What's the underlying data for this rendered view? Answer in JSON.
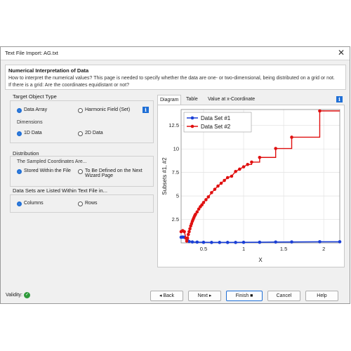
{
  "window": {
    "title": "Text File Import: AG.txt",
    "close_glyph": "✕"
  },
  "header": {
    "title": "Numerical Interpretation of Data",
    "description": "How to interpret the numerical values? This page is needed to specify whether the data are one- or two-dimensional, being distributed on a grid or not. If there is a grid: Are the coordinates equidistant or not?"
  },
  "target_object": {
    "title": "Target Object Type",
    "options": [
      "Data Array",
      "Harmonic Field (Set)"
    ],
    "selected": "Data Array",
    "info_glyph": "i",
    "dimensions_label": "Dimensions",
    "dimensions": [
      "1D Data",
      "2D Data"
    ],
    "dimensions_selected": "1D Data"
  },
  "distribution": {
    "title": "Distribution",
    "subtitle": "The Sampled Coordinates Are...",
    "options": [
      "Stored Within the File",
      "To Be Defined on the Next Wizard Page"
    ],
    "selected": "Stored Within the File"
  },
  "datasets_listed": {
    "title": "Data Sets are Listed Within Text File in...",
    "options": [
      "Columns",
      "Rows"
    ],
    "selected": "Columns"
  },
  "tabs": [
    "Diagram",
    "Table",
    "Value at x-Coordinate"
  ],
  "active_tab": "Diagram",
  "chart_data": {
    "type": "line",
    "xlabel": "X",
    "ylabel": "Subsets #1, #2",
    "xlim": [
      0.22,
      2.2
    ],
    "ylim": [
      0,
      14.2
    ],
    "xticks": [
      "0.5",
      "1",
      "1.5",
      "2"
    ],
    "xtick_values": [
      0.5,
      1,
      1.5,
      2
    ],
    "yticks": [
      "2.5",
      "5",
      "7.5",
      "10",
      "12.5"
    ],
    "ytick_values": [
      2.5,
      5,
      7.5,
      10,
      12.5
    ],
    "grid": true,
    "legend_position": "top-left",
    "series": [
      {
        "name": "Data Set #1",
        "color": "#1a3fd6",
        "x": [
          0.22,
          0.24,
          0.26,
          0.28,
          0.3,
          0.32,
          0.36,
          0.42,
          0.5,
          0.6,
          0.7,
          0.8,
          0.9,
          1.0,
          1.2,
          1.4,
          1.6,
          1.95,
          2.2
        ],
        "y": [
          0.6,
          0.62,
          0.6,
          0.5,
          0.25,
          0.15,
          0.1,
          0.08,
          0.06,
          0.05,
          0.05,
          0.05,
          0.05,
          0.06,
          0.07,
          0.09,
          0.1,
          0.12,
          0.12
        ]
      },
      {
        "name": "Data Set #2",
        "color": "#e01010",
        "x": [
          0.22,
          0.24,
          0.26,
          0.28,
          0.29,
          0.3,
          0.31,
          0.32,
          0.33,
          0.34,
          0.35,
          0.36,
          0.37,
          0.38,
          0.39,
          0.4,
          0.42,
          0.44,
          0.46,
          0.48,
          0.5,
          0.53,
          0.56,
          0.6,
          0.64,
          0.68,
          0.72,
          0.76,
          0.8,
          0.85,
          0.9,
          0.95,
          1.0,
          1.05,
          1.1,
          1.2,
          1.4,
          1.6,
          1.95
        ],
        "y": [
          1.2,
          1.3,
          1.2,
          0.5,
          0.2,
          0.5,
          0.9,
          1.2,
          1.5,
          1.8,
          2.05,
          2.3,
          2.5,
          2.7,
          2.9,
          3.05,
          3.3,
          3.6,
          3.85,
          4.05,
          4.3,
          4.6,
          4.9,
          5.35,
          5.7,
          6.05,
          6.35,
          6.65,
          6.95,
          7.1,
          7.6,
          7.85,
          8.1,
          8.35,
          8.6,
          9.1,
          10.05,
          11.25,
          14.05
        ],
        "step_from_index": 34
      }
    ]
  },
  "footer": {
    "validity_label": "Validity:",
    "check_glyph": "✓",
    "buttons": [
      "◂ Back",
      "Next ▸",
      "Finish ■",
      "Cancel",
      "Help"
    ]
  }
}
